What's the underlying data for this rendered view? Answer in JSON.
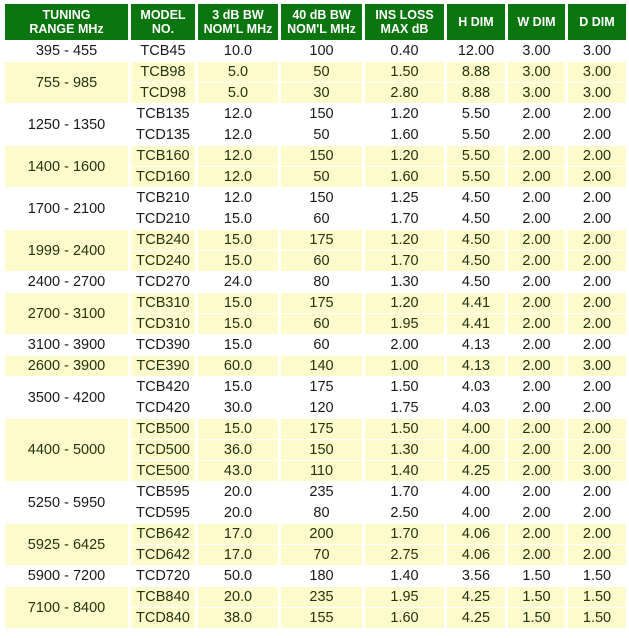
{
  "colors": {
    "header_bg": "#0b750f",
    "header_text": "#ffffff",
    "alt_row_bg": "#fdfbcb"
  },
  "headers": [
    [
      "TUNING",
      "RANGE MHz"
    ],
    [
      "MODEL",
      "NO."
    ],
    [
      "3 dB BW",
      "NOM'L MHz"
    ],
    [
      "40 dB BW",
      "NOM'L MHz"
    ],
    [
      "INS LOSS",
      "MAX dB"
    ],
    [
      "H DIM"
    ],
    [
      "W DIM"
    ],
    [
      "D DIM"
    ]
  ],
  "groups": [
    {
      "range": "395 - 455",
      "rows": [
        [
          "TCB45",
          "10.0",
          "100",
          "0.40",
          "12.00",
          "3.00",
          "3.00"
        ]
      ]
    },
    {
      "range": "755 - 985",
      "rows": [
        [
          "TCB98",
          "5.0",
          "50",
          "1.50",
          "8.88",
          "3.00",
          "3.00"
        ],
        [
          "TCD98",
          "5.0",
          "30",
          "2.80",
          "8.88",
          "3.00",
          "3.00"
        ]
      ]
    },
    {
      "range": "1250 - 1350",
      "rows": [
        [
          "TCB135",
          "12.0",
          "150",
          "1.20",
          "5.50",
          "2.00",
          "2.00"
        ],
        [
          "TCD135",
          "12.0",
          "50",
          "1.60",
          "5.50",
          "2.00",
          "2.00"
        ]
      ]
    },
    {
      "range": "1400 - 1600",
      "rows": [
        [
          "TCB160",
          "12.0",
          "150",
          "1.20",
          "5.50",
          "2.00",
          "2.00"
        ],
        [
          "TCD160",
          "12.0",
          "50",
          "1.60",
          "5.50",
          "2.00",
          "2.00"
        ]
      ]
    },
    {
      "range": "1700 - 2100",
      "rows": [
        [
          "TCB210",
          "12.0",
          "150",
          "1.25",
          "4.50",
          "2.00",
          "2.00"
        ],
        [
          "TCD210",
          "15.0",
          "60",
          "1.70",
          "4.50",
          "2.00",
          "2.00"
        ]
      ]
    },
    {
      "range": "1999 - 2400",
      "rows": [
        [
          "TCB240",
          "15.0",
          "175",
          "1.20",
          "4.50",
          "2.00",
          "2.00"
        ],
        [
          "TCD240",
          "15.0",
          "60",
          "1.70",
          "4.50",
          "2.00",
          "2.00"
        ]
      ]
    },
    {
      "range": "2400 - 2700",
      "rows": [
        [
          "TCD270",
          "24.0",
          "80",
          "1.30",
          "4.50",
          "2.00",
          "2.00"
        ]
      ]
    },
    {
      "range": "2700 - 3100",
      "rows": [
        [
          "TCB310",
          "15.0",
          "175",
          "1.20",
          "4.41",
          "2.00",
          "2.00"
        ],
        [
          "TCD310",
          "15.0",
          "60",
          "1.95",
          "4.41",
          "2.00",
          "2.00"
        ]
      ]
    },
    {
      "range": "3100 - 3900",
      "rows": [
        [
          "TCD390",
          "15.0",
          "60",
          "2.00",
          "4.13",
          "2.00",
          "2.00"
        ]
      ]
    },
    {
      "range": "2600 - 3900",
      "rows": [
        [
          "TCE390",
          "60.0",
          "140",
          "1.00",
          "4.13",
          "2.00",
          "3.00"
        ]
      ]
    },
    {
      "range": "3500 - 4200",
      "rows": [
        [
          "TCB420",
          "15.0",
          "175",
          "1.50",
          "4.03",
          "2.00",
          "2.00"
        ],
        [
          "TCD420",
          "30.0",
          "120",
          "1.75",
          "4.03",
          "2.00",
          "2.00"
        ]
      ]
    },
    {
      "range": "4400 - 5000",
      "rows": [
        [
          "TCB500",
          "15.0",
          "175",
          "1.50",
          "4.00",
          "2.00",
          "2.00"
        ],
        [
          "TCD500",
          "36.0",
          "150",
          "1.30",
          "4.00",
          "2.00",
          "2.00"
        ],
        [
          "TCE500",
          "43.0",
          "110",
          "1.40",
          "4.25",
          "2.00",
          "3.00"
        ]
      ]
    },
    {
      "range": "5250 - 5950",
      "rows": [
        [
          "TCB595",
          "20.0",
          "235",
          "1.70",
          "4.00",
          "2.00",
          "2.00"
        ],
        [
          "TCD595",
          "20.0",
          "80",
          "2.50",
          "4.00",
          "2.00",
          "2.00"
        ]
      ]
    },
    {
      "range": "5925 - 6425",
      "rows": [
        [
          "TCB642",
          "17.0",
          "200",
          "1.70",
          "4.06",
          "2.00",
          "2.00"
        ],
        [
          "TCD642",
          "17.0",
          "70",
          "2.75",
          "4.06",
          "2.00",
          "2.00"
        ]
      ]
    },
    {
      "range": "5900 - 7200",
      "rows": [
        [
          "TCD720",
          "50.0",
          "180",
          "1.40",
          "3.56",
          "1.50",
          "1.50"
        ]
      ]
    },
    {
      "range": "7100 - 8400",
      "rows": [
        [
          "TCB840",
          "20.0",
          "235",
          "1.95",
          "4.25",
          "1.50",
          "1.50"
        ],
        [
          "TCD840",
          "38.0",
          "155",
          "1.60",
          "4.25",
          "1.50",
          "1.50"
        ]
      ]
    }
  ]
}
